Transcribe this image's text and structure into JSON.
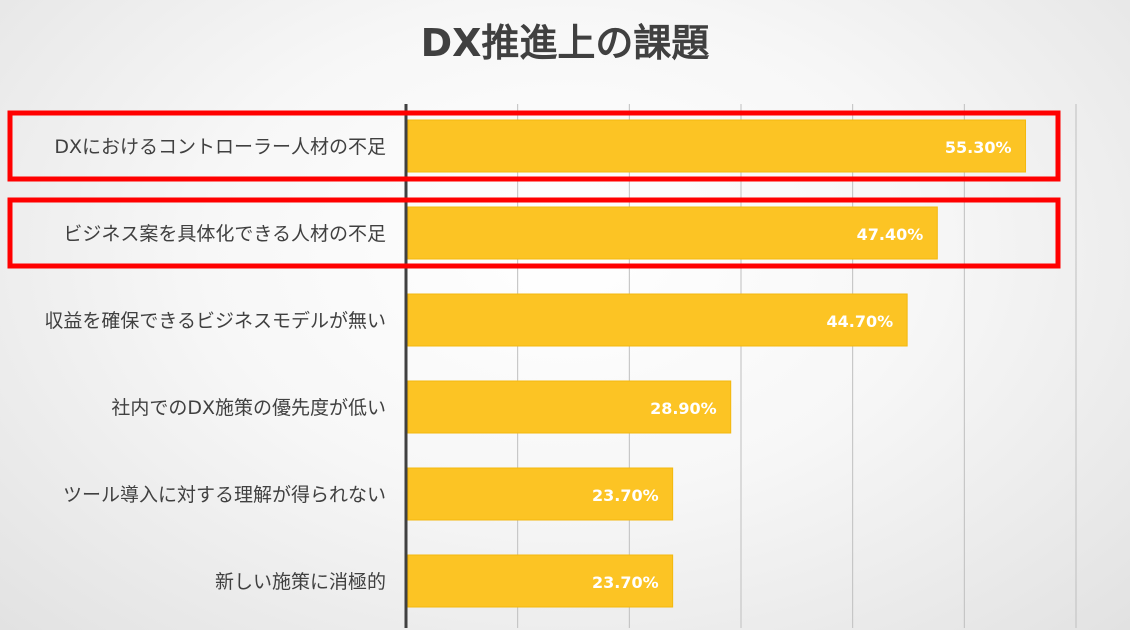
{
  "chart_data": {
    "type": "bar",
    "orientation": "horizontal",
    "title": "DX推進上の課題",
    "categories": [
      "DXにおけるコントローラー人材の不足",
      "ビジネス案を具体化できる人材の不足",
      "収益を確保できるビジネスモデルが無い",
      "社内でのDX施策の優先度が低い",
      "ツール導入に対する理解が得られない",
      "新しい施策に消極的"
    ],
    "values": [
      55.3,
      47.4,
      44.7,
      28.9,
      23.7,
      23.7
    ],
    "value_labels": [
      "55.30%",
      "47.40%",
      "44.70%",
      "28.90%",
      "23.70%",
      "23.70%"
    ],
    "xlim": [
      0,
      60
    ],
    "grid": true,
    "highlighted_categories": [
      0,
      1
    ],
    "colors": {
      "bar": "#fcc424",
      "bar_edge": "#f3b80e",
      "highlight": "#ff0000",
      "grid": "#bfbfbf",
      "axis": "#404040"
    }
  }
}
